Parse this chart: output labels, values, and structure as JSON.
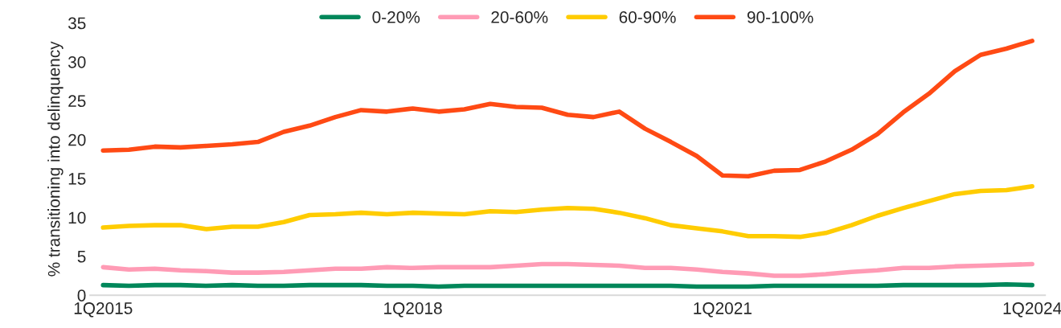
{
  "chart_data": {
    "type": "line",
    "ylabel": "% transitioning into delinquency",
    "categories": [
      "1Q2015",
      null,
      null,
      null,
      null,
      null,
      null,
      null,
      null,
      null,
      null,
      null,
      "1Q2018",
      null,
      null,
      null,
      null,
      null,
      null,
      null,
      null,
      null,
      null,
      null,
      "1Q2021",
      null,
      null,
      null,
      null,
      null,
      null,
      null,
      null,
      null,
      null,
      null,
      "1Q2024"
    ],
    "series": [
      {
        "name": "0-20%",
        "color": "#00875a",
        "values": [
          1.3,
          1.2,
          1.3,
          1.3,
          1.2,
          1.3,
          1.2,
          1.2,
          1.3,
          1.3,
          1.3,
          1.2,
          1.2,
          1.1,
          1.2,
          1.2,
          1.2,
          1.2,
          1.2,
          1.2,
          1.2,
          1.2,
          1.2,
          1.1,
          1.1,
          1.1,
          1.2,
          1.2,
          1.2,
          1.2,
          1.2,
          1.3,
          1.3,
          1.3,
          1.3,
          1.4,
          1.3
        ]
      },
      {
        "name": "20-60%",
        "color": "#ff9bb5",
        "values": [
          3.6,
          3.3,
          3.4,
          3.2,
          3.1,
          2.9,
          2.9,
          3.0,
          3.2,
          3.4,
          3.4,
          3.6,
          3.5,
          3.6,
          3.6,
          3.6,
          3.8,
          4.0,
          4.0,
          3.9,
          3.8,
          3.5,
          3.5,
          3.3,
          3.0,
          2.8,
          2.5,
          2.5,
          2.7,
          3.0,
          3.2,
          3.5,
          3.5,
          3.7,
          3.8,
          3.9,
          4.0
        ]
      },
      {
        "name": "60-90%",
        "color": "#ffcc00",
        "values": [
          8.7,
          8.9,
          9.0,
          9.0,
          8.5,
          8.8,
          8.8,
          9.4,
          10.3,
          10.4,
          10.6,
          10.4,
          10.6,
          10.5,
          10.4,
          10.8,
          10.7,
          11.0,
          11.2,
          11.1,
          10.6,
          9.9,
          9.0,
          8.6,
          8.2,
          7.6,
          7.6,
          7.5,
          8.0,
          9.0,
          10.2,
          11.2,
          12.1,
          13.0,
          13.4,
          13.5,
          14.0
        ]
      },
      {
        "name": "90-100%",
        "color": "#ff4a14",
        "values": [
          18.6,
          18.7,
          19.1,
          19.0,
          19.2,
          19.4,
          19.7,
          21.0,
          21.8,
          22.9,
          23.8,
          23.6,
          24.0,
          23.6,
          23.9,
          24.6,
          24.2,
          24.1,
          23.2,
          22.9,
          23.6,
          21.4,
          19.7,
          17.9,
          15.4,
          15.3,
          16.0,
          16.1,
          17.2,
          18.7,
          20.7,
          23.5,
          25.9,
          28.8,
          30.9,
          31.7,
          32.7
        ]
      }
    ],
    "ylim": [
      0,
      35
    ],
    "yticks": [
      0,
      5,
      10,
      15,
      20,
      25,
      30,
      35
    ],
    "legend": "top",
    "grid": false,
    "marker": "none",
    "line_style": "solid"
  }
}
